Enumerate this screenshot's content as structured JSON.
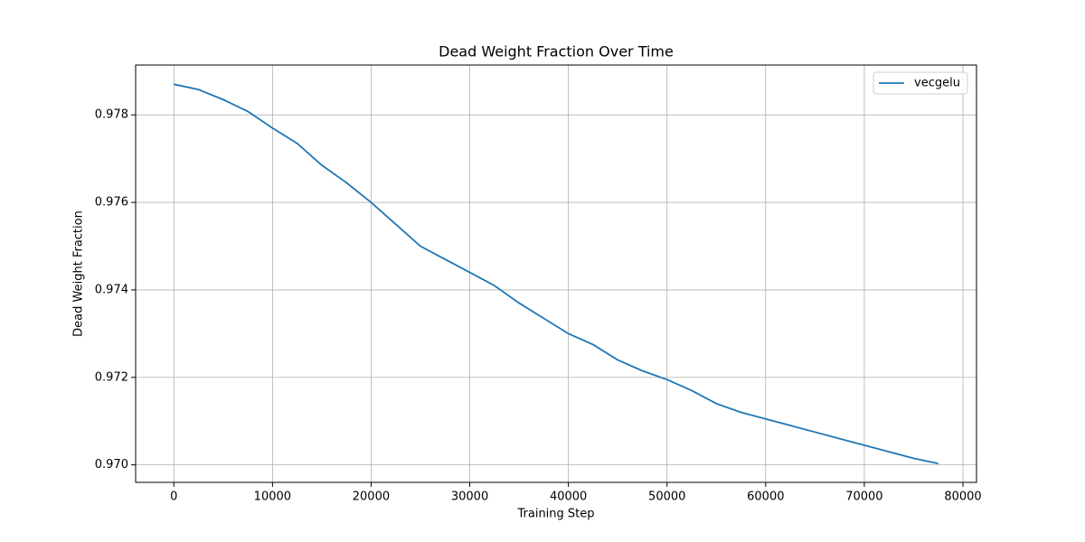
{
  "chart_data": {
    "type": "line",
    "title": "Dead Weight Fraction Over Time",
    "xlabel": "Training Step",
    "ylabel": "Dead Weight Fraction",
    "x": [
      0,
      2500,
      5000,
      7500,
      10000,
      12500,
      15000,
      17500,
      20000,
      22500,
      25000,
      27500,
      30000,
      32500,
      35000,
      37500,
      40000,
      42500,
      45000,
      47500,
      50000,
      52500,
      55000,
      57500,
      60000,
      62500,
      65000,
      67500,
      70000,
      72500,
      75000,
      77500
    ],
    "series": [
      {
        "name": "vecgelu",
        "color": "#1f77b4",
        "values": [
          0.9787,
          0.97858,
          0.97835,
          0.97808,
          0.9777,
          0.97735,
          0.97685,
          0.97645,
          0.976,
          0.9755,
          0.975,
          0.9747,
          0.9744,
          0.9741,
          0.9737,
          0.97335,
          0.973,
          0.97275,
          0.9724,
          0.97215,
          0.97195,
          0.9717,
          0.9714,
          0.9712,
          0.97105,
          0.9709,
          0.97075,
          0.9706,
          0.97045,
          0.9703,
          0.97015,
          0.97003
        ]
      }
    ],
    "xlim": [
      -3875,
      81375
    ],
    "ylim": [
      0.9696,
      0.97914
    ],
    "xticks": [
      0,
      10000,
      20000,
      30000,
      40000,
      50000,
      60000,
      70000,
      80000
    ],
    "yticks": [
      {
        "value": 0.97,
        "label": "0.970"
      },
      0.972,
      0.974,
      0.976,
      0.978
    ],
    "grid": true,
    "legend": "upper-right"
  }
}
